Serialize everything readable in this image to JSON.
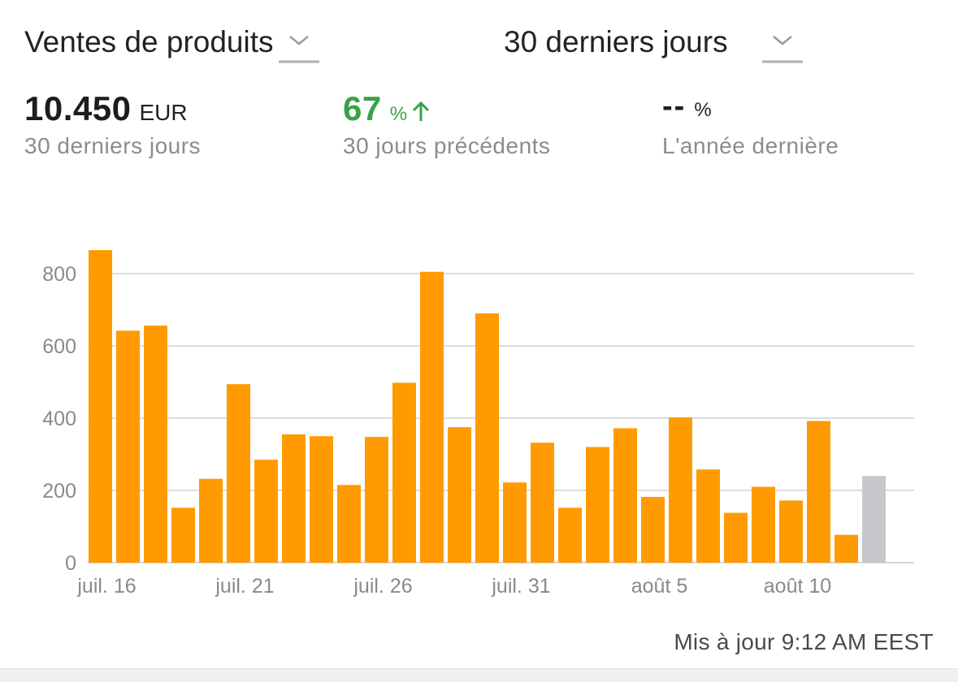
{
  "header": {
    "metric_selector": {
      "label": "Ventes de produits",
      "icon": "chevron-down-icon"
    },
    "period_selector": {
      "label": "30 derniers jours",
      "icon": "chevron-down-icon"
    }
  },
  "metrics": {
    "current": {
      "value": "10.450",
      "unit": "EUR",
      "label": "30 derniers jours"
    },
    "previous": {
      "value": "67",
      "unit": "%",
      "trend_icon": "arrow-up-icon",
      "color": "#3aa148",
      "label": "30 jours précédents"
    },
    "last_year": {
      "value": "--",
      "unit": "%",
      "label": "L'année dernière"
    }
  },
  "colors": {
    "bar": "#ff9b00",
    "bar_today": "#c7c7cc",
    "grid": "#c8c8c8",
    "axis_text": "#8a8a8a"
  },
  "chart_data": {
    "type": "bar",
    "ylim": [
      0,
      800
    ],
    "yticks": [
      0,
      200,
      400,
      600,
      800
    ],
    "grid": true,
    "x_tick_labels": [
      "juil. 16",
      "juil. 21",
      "juil. 26",
      "juil. 31",
      "août 5",
      "août 10"
    ],
    "x_tick_indices": [
      0,
      5,
      10,
      15,
      20,
      25
    ],
    "categories": [
      "juil. 16",
      "juil. 17",
      "juil. 18",
      "juil. 19",
      "juil. 20",
      "juil. 21",
      "juil. 22",
      "juil. 23",
      "juil. 24",
      "juil. 25",
      "juil. 26",
      "juil. 27",
      "juil. 28",
      "juil. 29",
      "juil. 30",
      "juil. 31",
      "août 1",
      "août 2",
      "août 3",
      "août 4",
      "août 5",
      "août 6",
      "août 7",
      "août 8",
      "août 9",
      "août 10",
      "août 11",
      "août 12",
      "août 13"
    ],
    "values": [
      865,
      642,
      656,
      152,
      232,
      494,
      285,
      355,
      350,
      215,
      348,
      498,
      805,
      375,
      690,
      222,
      332,
      152,
      320,
      372,
      182,
      402,
      258,
      138,
      210,
      172,
      392,
      77,
      240
    ],
    "highlight_last": true
  },
  "footer": {
    "updated_text": "Mis à jour 9:12 AM EEST"
  }
}
